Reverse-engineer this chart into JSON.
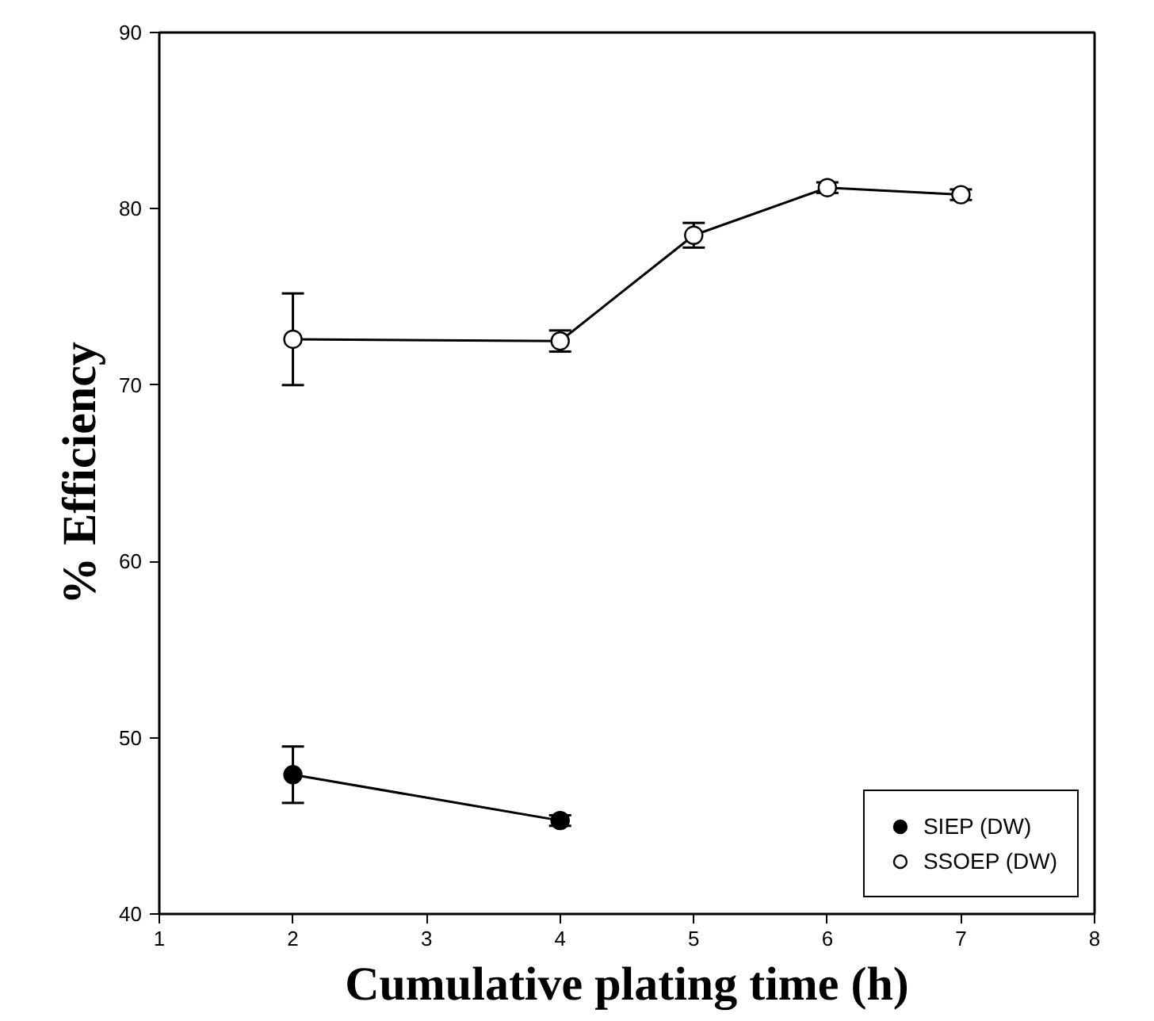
{
  "chart_data": {
    "type": "line",
    "xlabel": "Cumulative plating time (h)",
    "ylabel": "% Efficiency",
    "xlim": [
      1,
      8
    ],
    "xticks": [
      1,
      2,
      3,
      4,
      5,
      6,
      7,
      8
    ],
    "ylim": [
      40,
      90
    ],
    "yticks": [
      40,
      50,
      60,
      70,
      80,
      90
    ],
    "grid": false,
    "legend": "bottom right",
    "marker": "circle",
    "line_style": "solid",
    "series": [
      {
        "name": "SIEP (DW)",
        "color": "#000000",
        "x": [
          2,
          4
        ],
        "values": [
          47.9,
          45.3
        ],
        "errors": [
          1.6,
          0.3
        ]
      },
      {
        "name": "SSOEP (DW)",
        "color": "#000000",
        "x": [
          2,
          4,
          5,
          6,
          7
        ],
        "values": [
          72.6,
          72.5,
          78.5,
          81.2,
          80.8
        ],
        "errors": [
          2.6,
          0.6,
          0.7,
          0.3,
          0.3
        ]
      }
    ]
  }
}
